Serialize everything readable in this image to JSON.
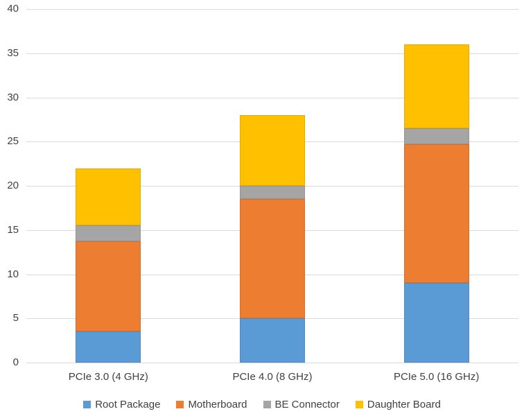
{
  "chart_data": {
    "type": "bar",
    "stacked": true,
    "title": "",
    "xlabel": "",
    "ylabel": "",
    "categories": [
      "PCIe 3.0 (4 GHz)",
      "PCIe 4.0 (8 GHz)",
      "PCIe 5.0 (16 GHz)"
    ],
    "series": [
      {
        "name": "Root Package",
        "color": "#5B9BD5",
        "values": [
          3.5,
          5.0,
          9.0
        ]
      },
      {
        "name": "Motherboard",
        "color": "#ED7D31",
        "values": [
          10.2,
          13.5,
          15.7
        ]
      },
      {
        "name": "BE Connector",
        "color": "#A5A5A5",
        "values": [
          1.8,
          1.5,
          1.8
        ]
      },
      {
        "name": "Daughter Board",
        "color": "#FFC000",
        "values": [
          6.5,
          8.0,
          9.5
        ]
      }
    ],
    "ylim": [
      0,
      40
    ],
    "yticks": [
      0,
      5,
      10,
      15,
      20,
      25,
      30,
      35,
      40
    ],
    "grid": "horizontal",
    "legend_position": "bottom",
    "colors": {
      "gridline": "#D9D9D9",
      "axis_text": "#3F3F3F",
      "background": "#FFFFFF"
    }
  }
}
